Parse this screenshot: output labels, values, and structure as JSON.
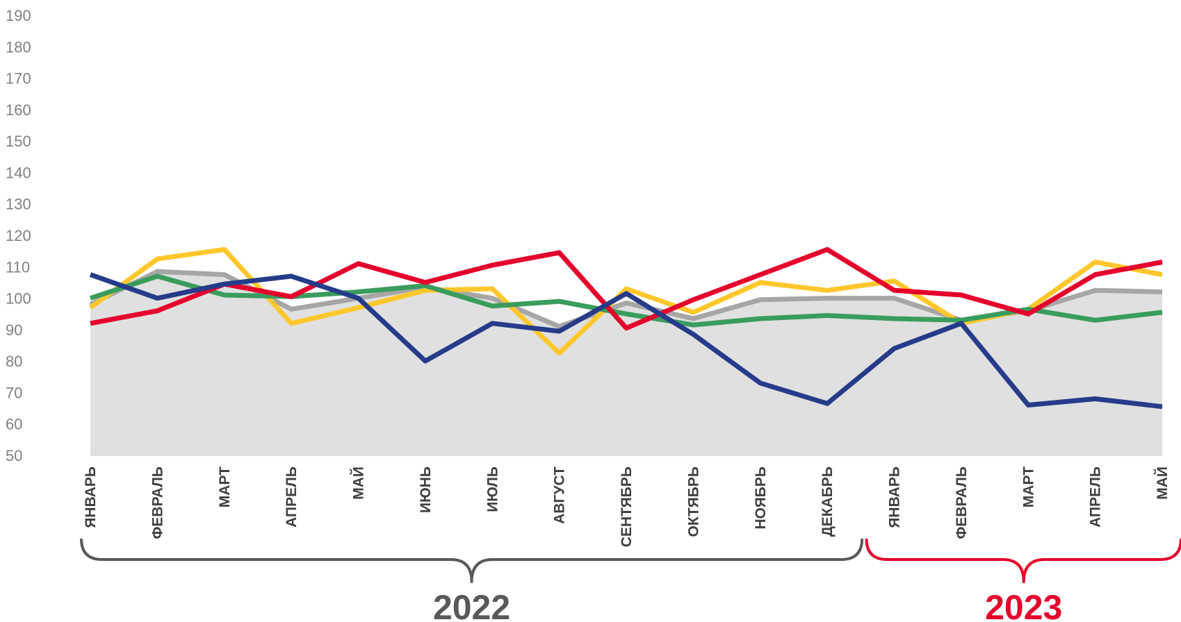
{
  "chart_data": {
    "type": "line",
    "title": "",
    "xlabel": "",
    "ylabel": "",
    "ylim": [
      50,
      190
    ],
    "yticks": [
      50,
      60,
      70,
      80,
      90,
      100,
      110,
      120,
      130,
      140,
      150,
      160,
      170,
      180,
      190
    ],
    "grid": false,
    "categories": [
      "ЯНВАРЬ",
      "ФЕВРАЛЬ",
      "МАРТ",
      "АПРЕЛЬ",
      "МАЙ",
      "ИЮНЬ",
      "ИЮЛЬ",
      "АВГУСТ",
      "СЕНТЯБРЬ",
      "ОКТЯБРЬ",
      "НОЯБРЬ",
      "ДЕКАБРЬ",
      "ЯНВАРЬ",
      "ФЕВРАЛЬ",
      "МАРТ",
      "АПРЕЛЬ",
      "МАЙ"
    ],
    "groups": [
      {
        "label": "2022",
        "color": "#595959",
        "from": 0,
        "to": 11
      },
      {
        "label": "2023",
        "color": "#e4002b",
        "from": 12,
        "to": 16
      }
    ],
    "series": [
      {
        "type": "area",
        "color": "#a6a6a6",
        "fill": "#e0e0e0",
        "values": [
          98,
          108.5,
          107.5,
          96.5,
          100,
          103.5,
          100,
          91,
          98.5,
          93.5,
          99.5,
          100,
          100,
          93,
          96,
          102.5,
          102
        ]
      },
      {
        "type": "line",
        "color": "#ffc72c",
        "values": [
          97,
          112.5,
          115.5,
          92,
          97,
          102.5,
          103,
          82.5,
          103,
          95.5,
          105,
          102.5,
          105.5,
          92,
          96.5,
          111.5,
          107.5
        ]
      },
      {
        "type": "line",
        "color": "#3a9c5d",
        "values": [
          100,
          107,
          101,
          100.5,
          102,
          104,
          97.5,
          99,
          95,
          91.5,
          93.5,
          94.5,
          93.5,
          93,
          96.5,
          93,
          95.5
        ]
      },
      {
        "type": "line",
        "color": "#e4002b",
        "values": [
          92,
          96,
          104.5,
          100.5,
          111,
          105,
          110.5,
          114.5,
          90.5,
          99.5,
          107.5,
          115.5,
          102.5,
          101,
          95,
          107.5,
          111.5
        ]
      },
      {
        "type": "line",
        "color": "#263c8a",
        "values": [
          107.5,
          100,
          104.5,
          107,
          100,
          80,
          92,
          89.5,
          101.5,
          88.5,
          73,
          66.5,
          84,
          92,
          66,
          68,
          65.5
        ]
      }
    ]
  }
}
